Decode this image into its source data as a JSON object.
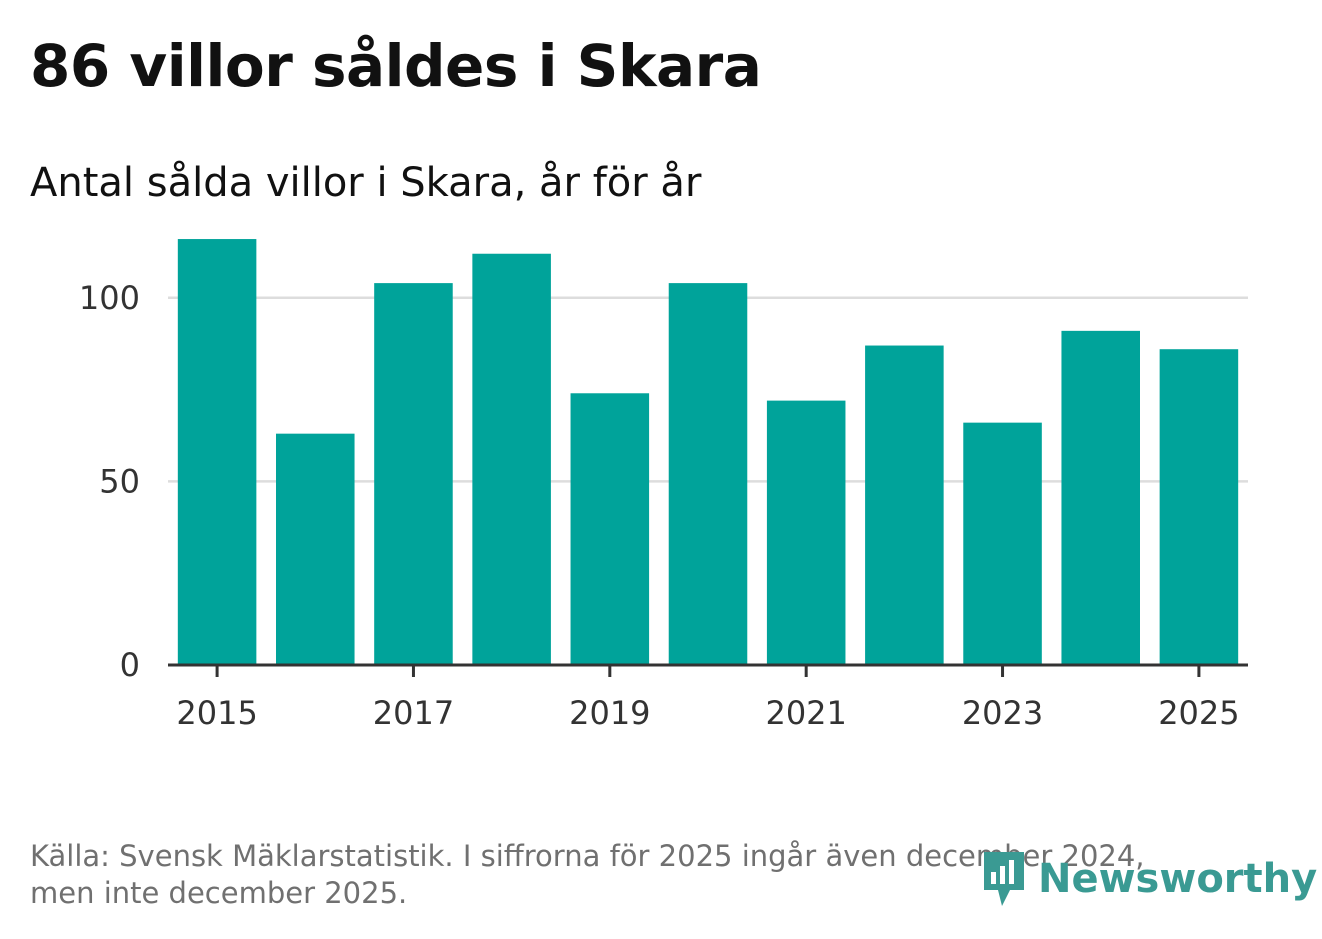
{
  "header": {
    "title": "86 villor såldes i Skara",
    "subtitle": "Antal sålda villor i Skara, år för år"
  },
  "footer": {
    "source_line1": "Källa: Svensk Mäklarstatistik. I siffrorna för 2025 ingår även december 2024,",
    "source_line2": "men inte december 2025.",
    "logo_text": "Newsworthy",
    "logo_icon": "bar-chart-speech-bubble-icon"
  },
  "colors": {
    "bar": "#00a39a",
    "grid": "#dddddd",
    "axis": "#333333",
    "logo": "#3a9a93"
  },
  "chart_data": {
    "type": "bar",
    "title": "Antal sålda villor i Skara, år för år",
    "categories": [
      "2015",
      "2016",
      "2017",
      "2018",
      "2019",
      "2020",
      "2021",
      "2022",
      "2023",
      "2024",
      "2025"
    ],
    "values": [
      116,
      63,
      104,
      112,
      74,
      104,
      72,
      87,
      66,
      91,
      86
    ],
    "x_tick_labels": [
      "2015",
      "2017",
      "2019",
      "2021",
      "2023",
      "2025"
    ],
    "y_ticks": [
      0,
      50,
      100
    ],
    "ylim": [
      0,
      125
    ],
    "grid": true,
    "legend": "none"
  }
}
